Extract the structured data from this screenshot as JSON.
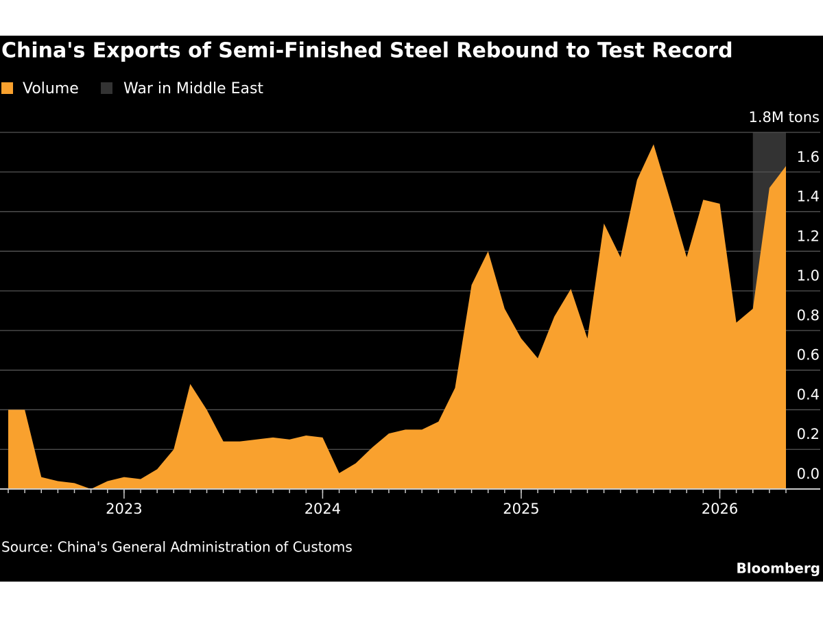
{
  "chart_data": {
    "type": "area",
    "title": "China's Exports of Semi-Finished Steel Rebound to Test Record",
    "source": "Source: China's General Administration of Customs",
    "brand": "Bloomberg",
    "x": [
      "2022-06",
      "2022-07",
      "2022-08",
      "2022-09",
      "2022-10",
      "2022-11",
      "2022-12",
      "2023-01",
      "2023-02",
      "2023-03",
      "2023-04",
      "2023-05",
      "2023-06",
      "2023-07",
      "2023-08",
      "2023-09",
      "2023-10",
      "2023-11",
      "2023-12",
      "2024-01",
      "2024-02",
      "2024-03",
      "2024-04",
      "2024-05",
      "2024-06",
      "2024-07",
      "2024-08",
      "2024-09",
      "2024-10",
      "2024-11",
      "2024-12",
      "2025-01",
      "2025-02",
      "2025-03",
      "2025-04",
      "2025-05",
      "2025-06",
      "2025-07",
      "2025-08",
      "2025-09",
      "2025-10",
      "2025-11",
      "2025-12",
      "2026-01",
      "2026-02",
      "2026-03",
      "2026-04",
      "2026-05"
    ],
    "series": [
      {
        "name": "Volume",
        "color": "#f9a12e",
        "values": [
          0.4,
          0.4,
          0.06,
          0.04,
          0.03,
          0.0,
          0.04,
          0.06,
          0.05,
          0.1,
          0.2,
          0.53,
          0.4,
          0.24,
          0.24,
          0.25,
          0.26,
          0.25,
          0.27,
          0.26,
          0.08,
          0.13,
          0.21,
          0.28,
          0.3,
          0.3,
          0.34,
          0.51,
          1.03,
          1.2,
          0.91,
          0.76,
          0.66,
          0.87,
          1.01,
          0.76,
          1.34,
          1.17,
          1.56,
          1.74,
          1.46,
          1.17,
          1.46,
          1.44,
          0.84,
          0.91,
          1.52,
          1.63
        ]
      }
    ],
    "highlight": {
      "name": "War in Middle East",
      "color": "#333333",
      "start": "2026-03",
      "end": "2026-05"
    },
    "xlim": [
      "2022-06",
      "2026-05"
    ],
    "xticks": [
      {
        "value": "2023-01",
        "label": "2023"
      },
      {
        "value": "2024-01",
        "label": "2024"
      },
      {
        "value": "2025-01",
        "label": "2025"
      },
      {
        "value": "2026-01",
        "label": "2026"
      }
    ],
    "ylim": [
      0,
      1.8
    ],
    "yticks": [
      {
        "value": 0,
        "label": "0.0"
      },
      0.2,
      0.4,
      0.6,
      0.8,
      {
        "value": 1,
        "label": "1.0"
      },
      1.2,
      1.4,
      1.6,
      {
        "value": 1.8,
        "label": "1.8M tons"
      }
    ],
    "grid": true
  }
}
